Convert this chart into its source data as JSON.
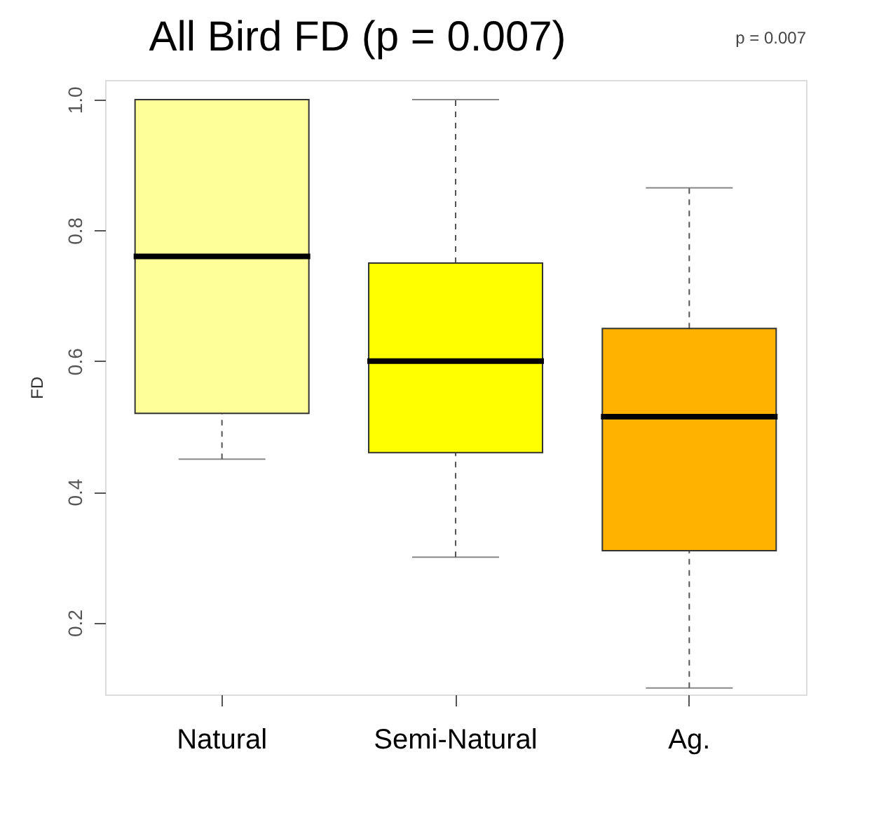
{
  "chart_data": {
    "type": "box",
    "title": "All Bird FD (p = 0.007)",
    "ylabel": "FD",
    "categories": [
      "Natural",
      "Semi-Natural",
      "Ag."
    ],
    "colors": [
      "#ffff99",
      "#ffff00",
      "#ffb300"
    ],
    "boxes": [
      {
        "low": 0.45,
        "q1": 0.52,
        "median": 0.76,
        "q3": 1.0,
        "high": 1.0
      },
      {
        "low": 0.3,
        "q1": 0.46,
        "median": 0.6,
        "q3": 0.75,
        "high": 1.0
      },
      {
        "low": 0.1,
        "q1": 0.31,
        "median": 0.515,
        "q3": 0.65,
        "high": 0.865
      }
    ],
    "ylim": [
      0.09,
      1.03
    ],
    "yticks": [
      0.2,
      0.4,
      0.6,
      0.8,
      {
        "value": 1.0,
        "label": "1.0"
      }
    ],
    "annotations": [
      "p = 0.007"
    ],
    "grid": false
  }
}
